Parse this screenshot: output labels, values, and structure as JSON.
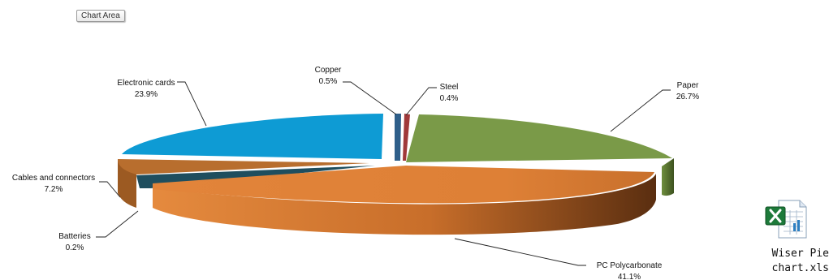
{
  "chart_area_label": "Chart Area",
  "chart_data": {
    "type": "pie",
    "style": "3d-exploded",
    "slices": [
      {
        "name": "Copper",
        "percent_label": "0.5%",
        "value": 0.5,
        "color": "#2f5f8a"
      },
      {
        "name": "Steel",
        "percent_label": "0.4%",
        "value": 0.4,
        "color": "#a0393a"
      },
      {
        "name": "Paper",
        "percent_label": "26.7%",
        "value": 26.7,
        "color": "#7a9a48"
      },
      {
        "name": "PC Polycarbonate",
        "percent_label": "41.1%",
        "value": 41.1,
        "color": "#e0823a"
      },
      {
        "name": "Batteries",
        "percent_label": "0.2%",
        "value": 0.2,
        "color": "#1f4e5e"
      },
      {
        "name": "Cables and connectors",
        "percent_label": "7.2%",
        "value": 7.2,
        "color": "#b86e2e"
      },
      {
        "name": "Electronic cards",
        "percent_label": "23.9%",
        "value": 23.9,
        "color": "#11a0d8"
      }
    ]
  },
  "file": {
    "icon": "excel-file-icon",
    "name_line1": "Wiser Pie",
    "name_line2": "chart.xls"
  }
}
